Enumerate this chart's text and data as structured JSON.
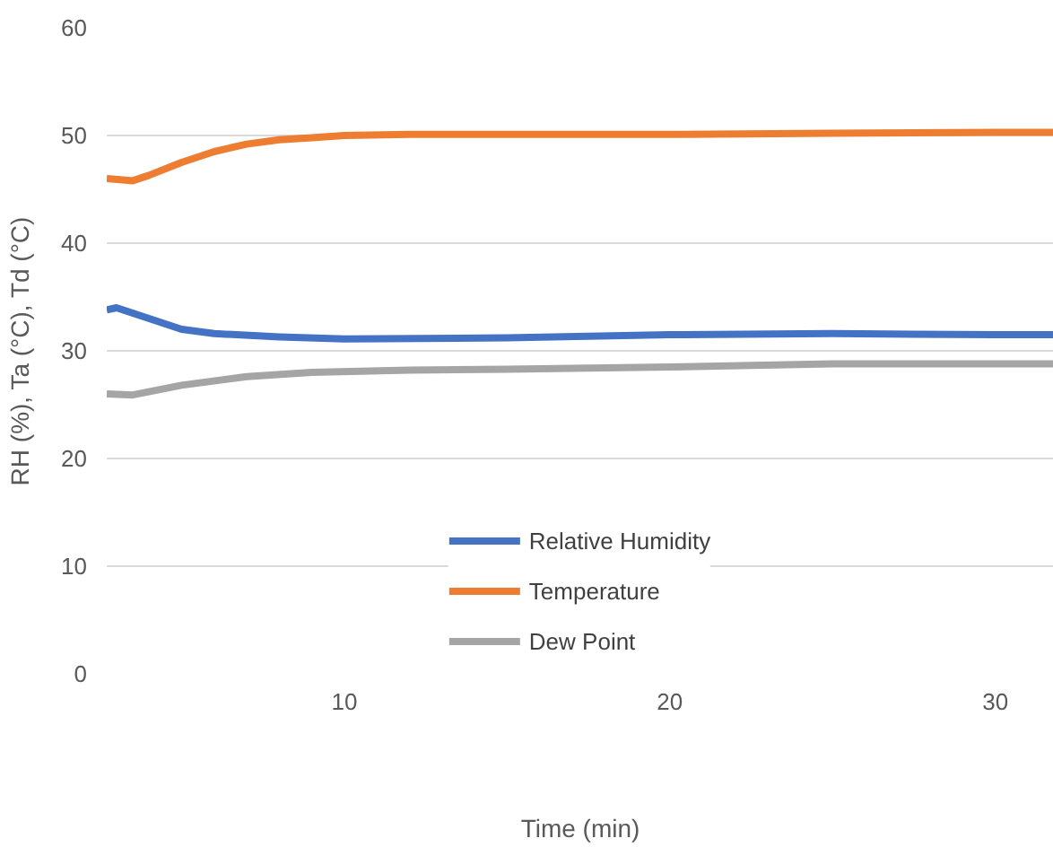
{
  "chart_data": {
    "type": "line",
    "xlabel": "Time (min)",
    "ylabel": "RH (%), Ta (°C), Td (°C)",
    "xlim": [
      2.7,
      31.8
    ],
    "ylim": [
      0,
      60
    ],
    "xticks": [
      10,
      20,
      30
    ],
    "yticks": [
      0,
      10,
      20,
      30,
      40,
      50,
      60
    ],
    "grid": "y",
    "legend": "bottom",
    "line_style": "solid",
    "marker": "none",
    "series": [
      {
        "name": "Relative Humidity",
        "color": "#4472c4",
        "x": [
          2.7,
          3,
          4,
          5,
          6,
          8,
          10,
          15,
          20,
          25,
          30,
          31.8
        ],
        "values": [
          33.8,
          34,
          33,
          32,
          31.6,
          31.3,
          31.1,
          31.2,
          31.5,
          31.6,
          31.5,
          31.5
        ]
      },
      {
        "name": "Temperature",
        "color": "#ed7d31",
        "x": [
          2.7,
          3.5,
          4,
          5,
          6,
          7,
          8,
          9,
          10,
          12,
          15,
          20,
          25,
          30,
          31.8
        ],
        "values": [
          46,
          45.8,
          46.3,
          47.5,
          48.5,
          49.2,
          49.6,
          49.8,
          50,
          50.1,
          50.1,
          50.1,
          50.2,
          50.3,
          50.3
        ]
      },
      {
        "name": "Dew Point",
        "color": "#a5a5a5",
        "x": [
          2.7,
          3.5,
          5,
          7,
          9,
          12,
          15,
          20,
          25,
          30,
          31.8
        ],
        "values": [
          26,
          25.9,
          26.8,
          27.6,
          28,
          28.2,
          28.3,
          28.5,
          28.8,
          28.8,
          28.8
        ]
      }
    ]
  }
}
